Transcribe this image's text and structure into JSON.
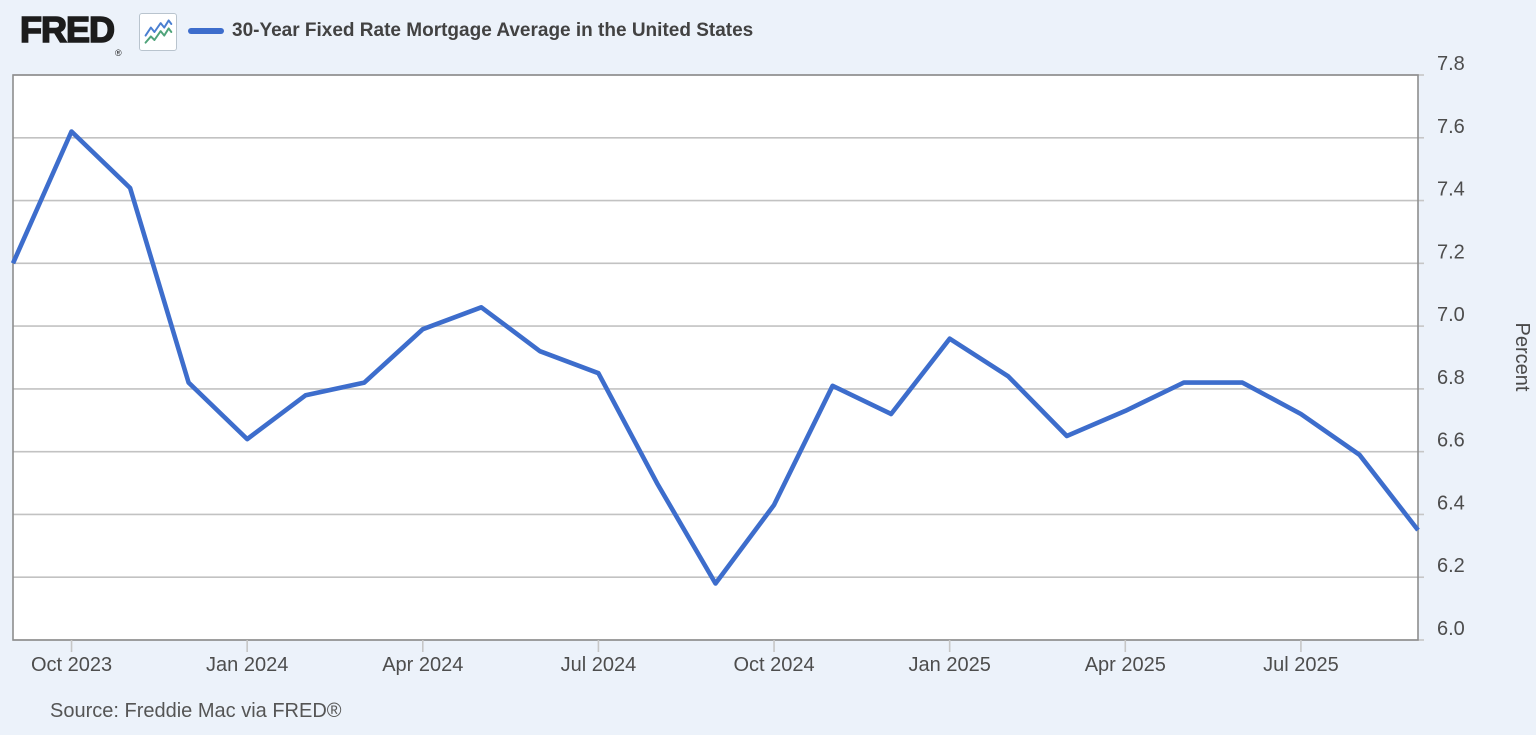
{
  "header": {
    "logo_text": "FRED",
    "logo_registered": "®"
  },
  "theme": {
    "page_background": "#ECF2FA",
    "plot_background": "#FFFFFF",
    "plot_border": "#8E8E8E",
    "gridline": "#C2C2C2",
    "tick_mark": "#C6C6C6",
    "tick_text": "#4D4D4D",
    "title_text": "#424242",
    "source_text": "#555555",
    "line_blue": "#3D6DCC",
    "logo_icon_blue": "#4A7FD1",
    "logo_icon_green": "#4FA37A"
  },
  "chart_data": {
    "type": "line",
    "title": "30-Year Fixed Rate Mortgage Average in the United States",
    "ylabel": "Percent",
    "source": "Source: Freddie Mac via FRED®",
    "legend_position": "top",
    "grid": true,
    "ylim": [
      6.0,
      7.8
    ],
    "y_ticks": [
      "6.0",
      "6.2",
      "6.4",
      "6.6",
      "6.8",
      "7.0",
      "7.2",
      "7.4",
      "7.6",
      "7.8"
    ],
    "x": [
      "Sep 2023",
      "Oct 2023",
      "Nov 2023",
      "Dec 2023",
      "Jan 2024",
      "Feb 2024",
      "Mar 2024",
      "Apr 2024",
      "May 2024",
      "Jun 2024",
      "Jul 2024",
      "Aug 2024",
      "Sep 2024",
      "Oct 2024",
      "Nov 2024",
      "Dec 2024",
      "Jan 2025",
      "Feb 2025",
      "Mar 2025",
      "Apr 2025",
      "May 2025",
      "Jun 2025",
      "Jul 2025",
      "Aug 2025",
      "Sep 2025"
    ],
    "values": [
      7.2,
      7.62,
      7.44,
      6.82,
      6.64,
      6.78,
      6.82,
      6.99,
      7.06,
      6.92,
      6.85,
      6.5,
      6.18,
      6.43,
      6.81,
      6.72,
      6.96,
      6.84,
      6.65,
      6.73,
      6.82,
      6.82,
      6.72,
      6.59,
      6.35
    ],
    "x_ticks": [
      {
        "label": "Oct 2023",
        "month_index": 1
      },
      {
        "label": "Jan 2024",
        "month_index": 4
      },
      {
        "label": "Apr 2024",
        "month_index": 7
      },
      {
        "label": "Jul 2024",
        "month_index": 10
      },
      {
        "label": "Oct 2024",
        "month_index": 13
      },
      {
        "label": "Jan 2025",
        "month_index": 16
      },
      {
        "label": "Apr 2025",
        "month_index": 19
      },
      {
        "label": "Jul 2025",
        "month_index": 22
      }
    ]
  }
}
